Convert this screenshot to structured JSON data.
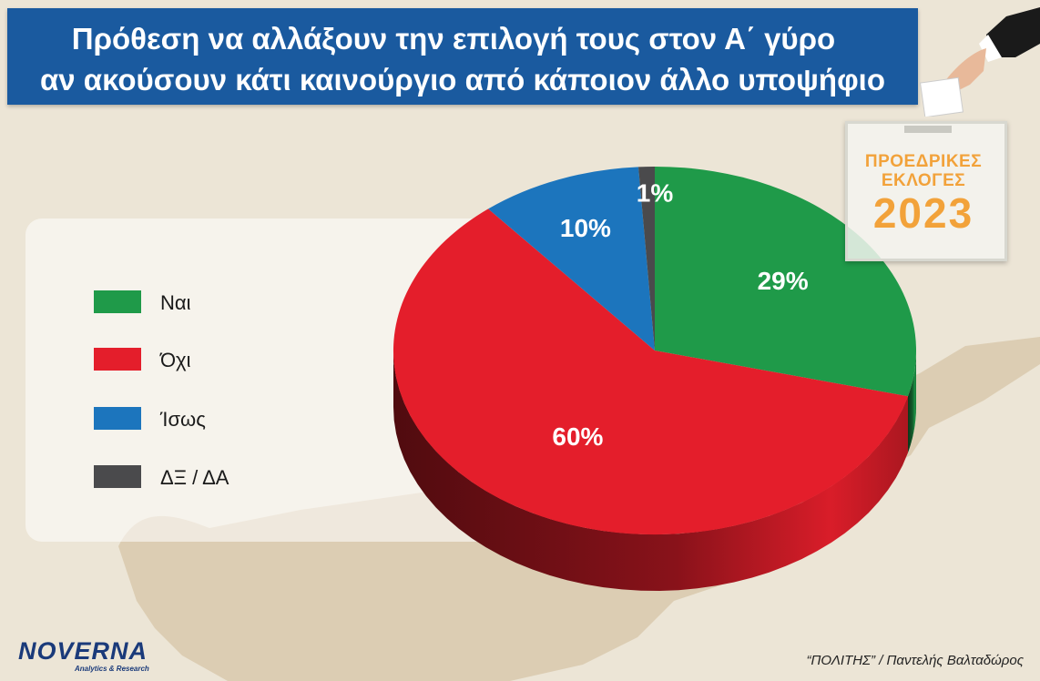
{
  "header": {
    "title_line1": "Πρόθεση να αλλάξουν την επιλογή τους στον Α΄ γύρο",
    "title_line2": "αν ακούσουν κάτι καινούργιο από κάποιον άλλο υποψήφιο",
    "background_color": "#1a5a9f"
  },
  "badge": {
    "line1": "ΠΡΟΕΔΡΙΚΕΣ",
    "line2": "ΕΚΛΟΓΕΣ",
    "year": "2023",
    "icon": "ballot-box-icon"
  },
  "legend": {
    "items": [
      {
        "label": "Ναι",
        "color": "#1f9a49"
      },
      {
        "label": "Όχι",
        "color": "#e41e2b"
      },
      {
        "label": "Ίσως",
        "color": "#1c75bd"
      },
      {
        "label": "ΔΞ / ΔΑ",
        "color": "#4a4a4c"
      }
    ]
  },
  "chart_data": {
    "type": "pie",
    "categories": [
      "Ναι",
      "Όχι",
      "Ίσως",
      "ΔΞ / ΔΑ"
    ],
    "values": [
      29,
      60,
      10,
      1
    ],
    "labels": [
      "29%",
      "60%",
      "10%",
      "1%"
    ],
    "colors": [
      "#1f9a49",
      "#e41e2b",
      "#1c75bd",
      "#4a4a4c"
    ],
    "start": "12 o'clock",
    "direction": "clockwise",
    "style": "3d"
  },
  "logo": {
    "name": "NOVERNA",
    "tagline": "Analytics & Research"
  },
  "credit": "“ΠΟΛΙΤΗΣ” / Παντελής Βαλταδώρος"
}
